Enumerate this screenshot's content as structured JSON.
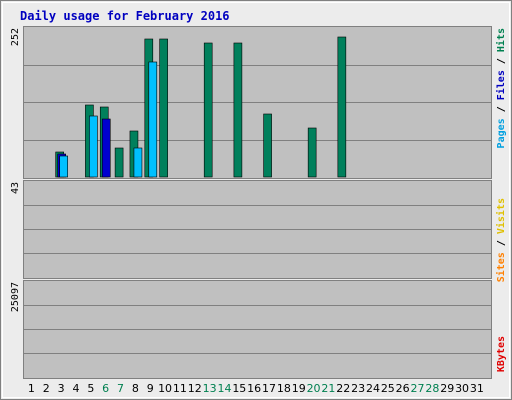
{
  "chart_data": {
    "type": "bar",
    "title": "Daily usage for February 2016",
    "days": [
      "1",
      "2",
      "3",
      "4",
      "5",
      "6",
      "7",
      "8",
      "9",
      "10",
      "11",
      "12",
      "13",
      "14",
      "15",
      "16",
      "17",
      "18",
      "19",
      "20",
      "21",
      "22",
      "23",
      "24",
      "25",
      "26",
      "27",
      "28",
      "29",
      "30",
      "31"
    ],
    "weekend_days": [
      "6",
      "7",
      "13",
      "14",
      "20",
      "21",
      "27",
      "28"
    ],
    "panels": [
      {
        "id": "hits",
        "max_label": "252",
        "ymax": 252,
        "grid": true,
        "series": [
          {
            "name": "Hits",
            "values": [
              0,
              0,
              43,
              0,
              125,
              120,
              50,
              80,
              238,
              238,
              0,
              0,
              232,
              0,
              232,
              0,
              108,
              0,
              0,
              84,
              0,
              241,
              0,
              0,
              0,
              0,
              0,
              0,
              0,
              0,
              0
            ]
          },
          {
            "name": "Files",
            "values": [
              0,
              0,
              40,
              0,
              0,
              100,
              0,
              0,
              0,
              0,
              0,
              0,
              0,
              0,
              0,
              0,
              0,
              0,
              0,
              0,
              0,
              0,
              0,
              0,
              0,
              0,
              0,
              0,
              0,
              0,
              0
            ]
          },
          {
            "name": "Pages",
            "values": [
              0,
              0,
              36,
              0,
              105,
              0,
              0,
              50,
              198,
              0,
              0,
              0,
              0,
              0,
              0,
              0,
              0,
              0,
              0,
              0,
              0,
              0,
              0,
              0,
              0,
              0,
              0,
              0,
              0,
              0,
              0
            ]
          }
        ]
      },
      {
        "id": "visits",
        "max_label": "43",
        "ymax": 43,
        "grid": true,
        "series": [
          {
            "name": "Visits",
            "values": [
              0,
              0,
              0,
              0,
              0,
              0,
              0,
              0,
              0,
              0,
              0,
              0,
              0,
              0,
              0,
              0,
              0,
              0,
              0,
              0,
              0,
              0,
              0,
              0,
              0,
              0,
              0,
              0,
              0,
              0,
              0
            ]
          },
          {
            "name": "Sites",
            "values": [
              0,
              0,
              0,
              0,
              0,
              0,
              0,
              0,
              0,
              0,
              0,
              0,
              0,
              0,
              0,
              0,
              0,
              0,
              0,
              0,
              0,
              0,
              0,
              0,
              0,
              0,
              0,
              0,
              0,
              0,
              0
            ]
          }
        ]
      },
      {
        "id": "kbytes",
        "max_label": "25097",
        "ymax": 25097,
        "grid": true,
        "series": [
          {
            "name": "KBytes",
            "values": [
              0,
              0,
              0,
              0,
              0,
              0,
              0,
              0,
              0,
              0,
              0,
              0,
              0,
              0,
              0,
              0,
              0,
              0,
              0,
              0,
              0,
              0,
              0,
              0,
              0,
              0,
              0,
              0,
              0,
              0,
              0
            ]
          }
        ]
      }
    ]
  },
  "legend": {
    "hits_panel": [
      {
        "text": "Pages",
        "color": "#00a0e0"
      },
      {
        "text": "Files",
        "color": "#0000c0"
      },
      {
        "text": "Hits",
        "color": "#008050"
      }
    ],
    "visits_panel": [
      {
        "text": "Sites",
        "color": "#ff8000"
      },
      {
        "text": "Visits",
        "color": "#e0c000"
      }
    ],
    "kbytes_panel": [
      {
        "text": "KBytes",
        "color": "#e00000"
      }
    ],
    "separator": " / "
  },
  "colors": {
    "hits": "#00805c",
    "files": "#0000d0",
    "pages": "#00c0ff",
    "visits": "#ffff00",
    "sites": "#ff8000",
    "kbytes": "#ff0000",
    "title": "#0000c0",
    "weekend_label": "#008050",
    "weekday_label": "#000000",
    "panel_bg": "#c0c0c0",
    "frame_bg": "#ececec"
  }
}
